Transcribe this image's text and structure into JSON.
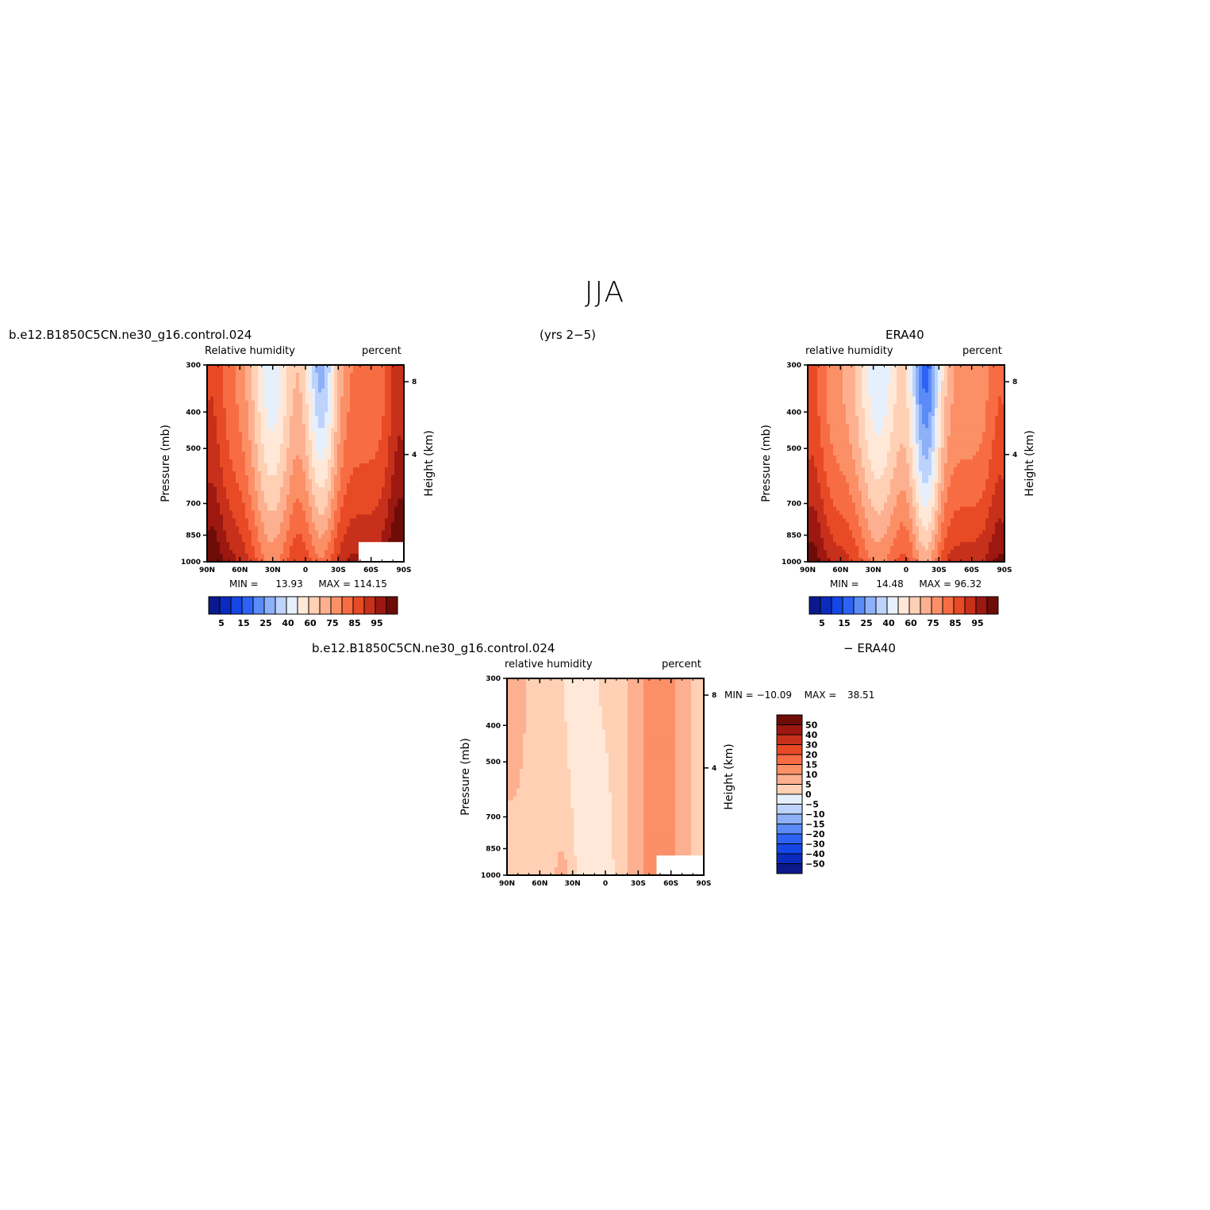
{
  "page": {
    "title": "JJA",
    "case_label": "b.e12.B1850C5CN.ne30_g16.control.024",
    "years": "(yrs 2−5)",
    "ref_label": "ERA40",
    "diff_case_label": "b.e12.B1850C5CN.ne30_g16.control.024",
    "diff_ref_label": "− ERA40"
  },
  "colors": {
    "levels": [
      "#0a1a8c",
      "#0b2bbe",
      "#1447e6",
      "#2d63f5",
      "#5a8bf7",
      "#8db0f9",
      "#bdd3fb",
      "#e6f0fd",
      "#ffe8d8",
      "#ffd0b4",
      "#fdb090",
      "#fb8f66",
      "#f86c44",
      "#e84a25",
      "#c7301a",
      "#9c1810",
      "#6e0c08"
    ]
  },
  "chart_data": [
    {
      "type": "heatmap",
      "id": "model",
      "title": "",
      "left_label": "Relative humidity",
      "right_label": "percent",
      "xlabel": "",
      "ylabel": "Pressure (mb)",
      "y2label": "Height (km)",
      "x_ticks": [
        "90N",
        "60N",
        "30N",
        "0",
        "30S",
        "60S",
        "90S"
      ],
      "y_ticks": [
        "300",
        "400",
        "500",
        "700",
        "850",
        "1000"
      ],
      "y_tick_values": [
        300,
        400,
        500,
        700,
        850,
        1000
      ],
      "y2_ticks": [
        "8",
        "4"
      ],
      "ylim": [
        1000,
        300
      ],
      "xlim": [
        90,
        -90
      ],
      "stats": {
        "min_label": "MIN =",
        "min": "13.93",
        "max_label": "MAX =",
        "max": "114.15"
      },
      "colorbar": {
        "orientation": "horizontal",
        "labels": [
          "5",
          "15",
          "25",
          "40",
          "60",
          "75",
          "85",
          "95"
        ]
      }
    },
    {
      "type": "heatmap",
      "id": "era40",
      "title": "ERA40",
      "left_label": "relative humidity",
      "right_label": "percent",
      "xlabel": "",
      "ylabel": "Pressure (mb)",
      "y2label": "Height (km)",
      "x_ticks": [
        "90N",
        "60N",
        "30N",
        "0",
        "30S",
        "60S",
        "90S"
      ],
      "y_ticks": [
        "300",
        "400",
        "500",
        "700",
        "850",
        "1000"
      ],
      "y_tick_values": [
        300,
        400,
        500,
        700,
        850,
        1000
      ],
      "y2_ticks": [
        "8",
        "4"
      ],
      "ylim": [
        1000,
        300
      ],
      "xlim": [
        90,
        -90
      ],
      "stats": {
        "min_label": "MIN =",
        "min": "14.48",
        "max_label": "MAX =",
        "max": "96.32"
      },
      "colorbar": {
        "orientation": "horizontal",
        "labels": [
          "5",
          "15",
          "25",
          "40",
          "60",
          "75",
          "85",
          "95"
        ]
      }
    },
    {
      "type": "heatmap",
      "id": "diff",
      "title": "",
      "left_label": "relative humidity",
      "right_label": "percent",
      "xlabel": "",
      "ylabel": "Pressure (mb)",
      "y2label": "Height (km)",
      "x_ticks": [
        "90N",
        "60N",
        "30N",
        "0",
        "30S",
        "60S",
        "90S"
      ],
      "y_ticks": [
        "300",
        "400",
        "500",
        "700",
        "850",
        "1000"
      ],
      "y_tick_values": [
        300,
        400,
        500,
        700,
        850,
        1000
      ],
      "y2_ticks": [
        "8",
        "4"
      ],
      "ylim": [
        1000,
        300
      ],
      "xlim": [
        90,
        -90
      ],
      "stats": {
        "min_label": "MIN =",
        "min": "−10.09",
        "max_label": "MAX =",
        "max": "38.51"
      },
      "colorbar": {
        "orientation": "vertical",
        "labels": [
          "50",
          "40",
          "30",
          "20",
          "15",
          "10",
          "5",
          "0",
          "−5",
          "−10",
          "−15",
          "−20",
          "−30",
          "−40",
          "−50"
        ]
      }
    }
  ]
}
